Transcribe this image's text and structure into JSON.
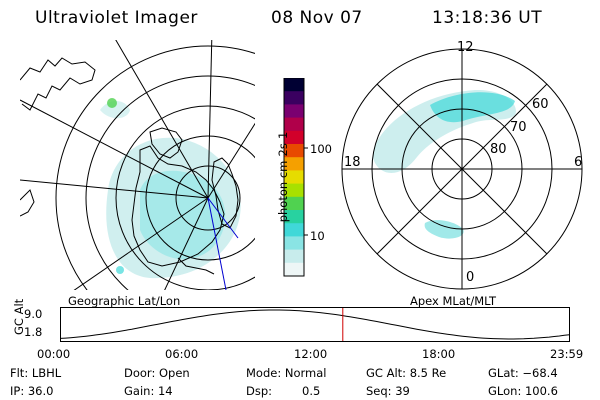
{
  "header": {
    "title": "Ultraviolet Imager",
    "date": "08 Nov 07",
    "time": "13:18:36 UT"
  },
  "colorbar": {
    "label": "photon cm-2s-1",
    "ticks": [
      "100",
      "10"
    ],
    "colors": [
      "#000033",
      "#3a0060",
      "#7a0070",
      "#b0004a",
      "#d2002a",
      "#e84a00",
      "#f5a000",
      "#e6dc00",
      "#a8e000",
      "#50d250",
      "#28d2a0",
      "#40d8d8",
      "#8ae4e4",
      "#c8ecec",
      "#eef6f6"
    ]
  },
  "panels": {
    "geographic_label": "Geographic Lat/Lon",
    "apex_label": "Apex MLat/MLT",
    "polar_labels": {
      "top": "12",
      "bottom": "0",
      "left": "18",
      "right": "6"
    },
    "lat_labels": [
      "60",
      "70",
      "80"
    ]
  },
  "altitude_plot": {
    "ylabel": "GC Alt",
    "ymax": "9.0",
    "ymin": "1.8",
    "ticks": [
      "00:00",
      "06:00",
      "12:00",
      "18:00",
      "23:59"
    ],
    "current_marker_hour": 13.31
  },
  "meta": {
    "flt": "Flt: LBHL",
    "ip": "IP: 36.0",
    "door": "Door: Open",
    "gain": "Gain: 14",
    "mode": "Mode: Normal",
    "dsp_label": "Dsp:",
    "dsp_value": "0.5",
    "gc_alt": "GC Alt: 8.5 Re",
    "seq": "Seq: 39",
    "glat": "GLat: −68.4",
    "glon": "GLon: 100.6"
  }
}
